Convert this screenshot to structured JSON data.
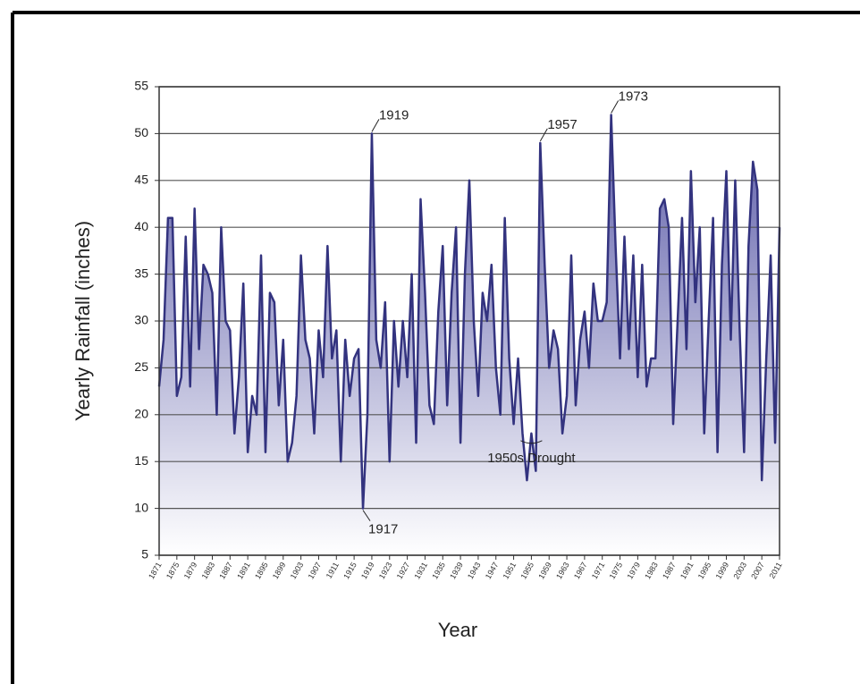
{
  "chart_data": {
    "type": "area",
    "ylabel": "Yearly Rainfall (inches)",
    "xlabel": "Year",
    "x": [
      1871,
      1872,
      1873,
      1874,
      1875,
      1876,
      1877,
      1878,
      1879,
      1880,
      1881,
      1882,
      1883,
      1884,
      1885,
      1886,
      1887,
      1888,
      1889,
      1890,
      1891,
      1892,
      1893,
      1894,
      1895,
      1896,
      1897,
      1898,
      1899,
      1900,
      1901,
      1902,
      1903,
      1904,
      1905,
      1906,
      1907,
      1908,
      1909,
      1910,
      1911,
      1912,
      1913,
      1914,
      1915,
      1916,
      1917,
      1918,
      1919,
      1920,
      1921,
      1922,
      1923,
      1924,
      1925,
      1926,
      1927,
      1928,
      1929,
      1930,
      1931,
      1932,
      1933,
      1934,
      1935,
      1936,
      1937,
      1938,
      1939,
      1940,
      1941,
      1942,
      1943,
      1944,
      1945,
      1946,
      1947,
      1948,
      1949,
      1950,
      1951,
      1952,
      1953,
      1954,
      1955,
      1956,
      1957,
      1958,
      1959,
      1960,
      1961,
      1962,
      1963,
      1964,
      1965,
      1966,
      1967,
      1968,
      1969,
      1970,
      1971,
      1972,
      1973,
      1974,
      1975,
      1976,
      1977,
      1978,
      1979,
      1980,
      1981,
      1982,
      1983,
      1984,
      1985,
      1986,
      1987,
      1988,
      1989,
      1990,
      1991,
      1992,
      1993,
      1994,
      1995,
      1996,
      1997,
      1998,
      1999,
      2000,
      2001,
      2002,
      2003,
      2004,
      2005,
      2006,
      2007,
      2008,
      2009,
      2010,
      2011
    ],
    "series": [
      {
        "color": "#33337f",
        "values": [
          23,
          28,
          41,
          41,
          22,
          24,
          39,
          23,
          42,
          27,
          36,
          35,
          33,
          20,
          40,
          30,
          29,
          18,
          24,
          34,
          16,
          22,
          20,
          37,
          16,
          33,
          32,
          21,
          28,
          15,
          17,
          22,
          37,
          28,
          26,
          18,
          29,
          24,
          38,
          26,
          29,
          15,
          28,
          22,
          26,
          27,
          10,
          20,
          50,
          28,
          25,
          32,
          15,
          30,
          23,
          30,
          24,
          35,
          17,
          43,
          33,
          21,
          19,
          31,
          38,
          21,
          33,
          40,
          17,
          35,
          45,
          30,
          22,
          33,
          30,
          36,
          25,
          20,
          41,
          26,
          19,
          26,
          18,
          13,
          18,
          14,
          49,
          36,
          25,
          29,
          27,
          18,
          22,
          37,
          21,
          28,
          31,
          25,
          34,
          30,
          30,
          32,
          52,
          38,
          26,
          39,
          27,
          37,
          24,
          36,
          23,
          26,
          26,
          42,
          43,
          40,
          19,
          30,
          41,
          27,
          46,
          32,
          40,
          18,
          30,
          41,
          16,
          36,
          46,
          28,
          45,
          29,
          16,
          38,
          47,
          44,
          13,
          26,
          37,
          17,
          40
        ]
      }
    ],
    "fill_gradient": [
      "#5c5ca8",
      "#ffffff"
    ],
    "xlim": [
      1871,
      2011
    ],
    "xticks": [
      1871,
      1875,
      1879,
      1883,
      1887,
      1891,
      1895,
      1899,
      1903,
      1907,
      1911,
      1915,
      1919,
      1923,
      1927,
      1931,
      1935,
      1939,
      1943,
      1947,
      1951,
      1955,
      1959,
      1963,
      1967,
      1971,
      1975,
      1979,
      1983,
      1987,
      1991,
      1995,
      1999,
      2003,
      2007,
      2011
    ],
    "ylim": [
      5,
      55
    ],
    "yticks": [
      5,
      10,
      15,
      20,
      25,
      30,
      35,
      40,
      45,
      50,
      55
    ],
    "grid": true,
    "annotations": [
      {
        "text": "1919",
        "x": 1919
      },
      {
        "text": "1917",
        "x": 1917
      },
      {
        "text": "1957",
        "x": 1957
      },
      {
        "text": "1973",
        "x": 1973
      },
      {
        "text": "1950s Drought",
        "x": 1955
      }
    ]
  }
}
